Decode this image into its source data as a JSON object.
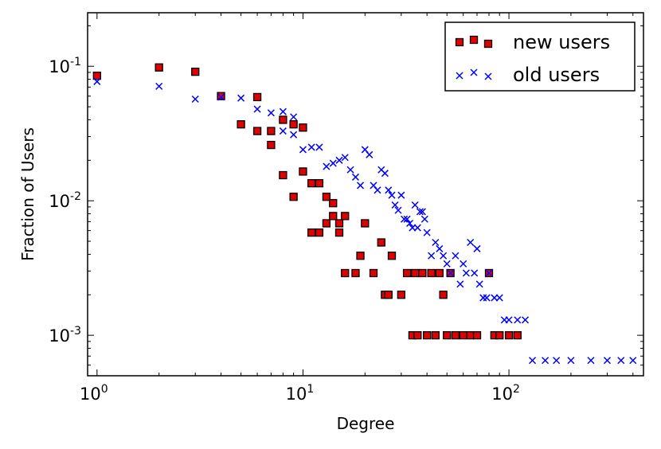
{
  "chart_data": {
    "type": "scatter",
    "title": "",
    "xlabel": "Degree",
    "ylabel": "Fraction of Users",
    "xscale": "log",
    "yscale": "log",
    "xlim": [
      0.9,
      450
    ],
    "ylim": [
      0.0005,
      0.25
    ],
    "xticks": [
      {
        "base": "10",
        "exp": "0",
        "value": 1
      },
      {
        "base": "10",
        "exp": "1",
        "value": 10
      },
      {
        "base": "10",
        "exp": "2",
        "value": 100
      }
    ],
    "yticks": [
      {
        "base": "10",
        "exp": "-3",
        "value": 0.001
      },
      {
        "base": "10",
        "exp": "-2",
        "value": 0.01
      },
      {
        "base": "10",
        "exp": "-1",
        "value": 0.1
      }
    ],
    "legend_position": "top-right",
    "series": [
      {
        "name": "new users",
        "marker": "square",
        "color": "#e00000",
        "edge_color": "#000000",
        "x": [
          1,
          2,
          3,
          4,
          5,
          6,
          6,
          7,
          7,
          8,
          8,
          9,
          9,
          10,
          10,
          11,
          11,
          12,
          12,
          13,
          13,
          14,
          14,
          15,
          15,
          16,
          16,
          18,
          19,
          20,
          22,
          24,
          25,
          26,
          27,
          30,
          32,
          34,
          35,
          36,
          38,
          40,
          42,
          44,
          46,
          48,
          50,
          52,
          55,
          60,
          65,
          70,
          80,
          85,
          90,
          100,
          110
        ],
        "y": [
          0.085,
          0.098,
          0.091,
          0.06,
          0.037,
          0.059,
          0.033,
          0.033,
          0.026,
          0.04,
          0.0155,
          0.037,
          0.0107,
          0.035,
          0.0165,
          0.0135,
          0.0058,
          0.0135,
          0.0058,
          0.0107,
          0.0068,
          0.0096,
          0.0077,
          0.0068,
          0.0058,
          0.0077,
          0.0029,
          0.0029,
          0.0039,
          0.0068,
          0.0029,
          0.0049,
          0.002,
          0.002,
          0.0039,
          0.002,
          0.0029,
          0.001,
          0.0029,
          0.001,
          0.0029,
          0.001,
          0.0029,
          0.001,
          0.0029,
          0.002,
          0.001,
          0.0029,
          0.001,
          0.001,
          0.001,
          0.001,
          0.0029,
          0.001,
          0.001,
          0.001,
          0.001
        ]
      },
      {
        "name": "old users",
        "marker": "x",
        "color": "#0000ff",
        "x": [
          1,
          2,
          3,
          4,
          5,
          6,
          7,
          8,
          8,
          9,
          9,
          10,
          11,
          12,
          13,
          14,
          15,
          16,
          17,
          18,
          19,
          20,
          21,
          22,
          23,
          24,
          25,
          26,
          27,
          28,
          29,
          30,
          31,
          32,
          33,
          34,
          35,
          36,
          37,
          38,
          39,
          40,
          42,
          44,
          46,
          48,
          50,
          52,
          55,
          58,
          60,
          62,
          65,
          68,
          70,
          72,
          75,
          78,
          80,
          85,
          90,
          95,
          100,
          110,
          120,
          130,
          150,
          170,
          200,
          250,
          300,
          350,
          400
        ],
        "y": [
          0.077,
          0.071,
          0.057,
          0.059,
          0.058,
          0.048,
          0.045,
          0.046,
          0.033,
          0.042,
          0.031,
          0.024,
          0.025,
          0.025,
          0.018,
          0.019,
          0.02,
          0.021,
          0.017,
          0.015,
          0.013,
          0.024,
          0.022,
          0.013,
          0.012,
          0.017,
          0.016,
          0.012,
          0.011,
          0.0093,
          0.0085,
          0.011,
          0.0073,
          0.0073,
          0.0068,
          0.0063,
          0.0093,
          0.0063,
          0.0083,
          0.0083,
          0.0073,
          0.0058,
          0.0039,
          0.0049,
          0.0044,
          0.0039,
          0.0034,
          0.0029,
          0.0039,
          0.0024,
          0.0034,
          0.0029,
          0.0049,
          0.0029,
          0.0044,
          0.0024,
          0.0019,
          0.0019,
          0.0029,
          0.0019,
          0.0019,
          0.0013,
          0.0013,
          0.0013,
          0.0013,
          0.00065,
          0.00065,
          0.00065,
          0.00065,
          0.00065,
          0.00065,
          0.00065,
          0.00065
        ]
      }
    ]
  }
}
